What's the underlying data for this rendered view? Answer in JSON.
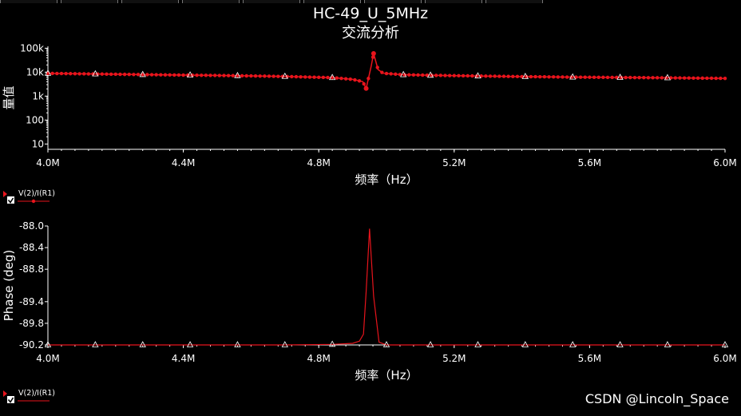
{
  "title": "HC-49_U_5MHz",
  "subtitle": "交流分析",
  "watermark": "CSDN @Lincoln_Space",
  "colors": {
    "trace": "#e8141c",
    "background": "#000000",
    "axis": "#ffffff"
  },
  "chart_data": [
    {
      "type": "line",
      "ylabel": "量值",
      "xlabel": "频率（Hz）",
      "xscale": "linear",
      "yscale": "log",
      "xlim": [
        4000000,
        6000000
      ],
      "ylim": [
        6,
        120000
      ],
      "x_ticks": [
        4000000,
        4400000,
        4800000,
        5200000,
        5600000,
        6000000
      ],
      "x_tick_labels": [
        "4.0M",
        "4.4M",
        "4.8M",
        "5.2M",
        "5.6M",
        "6.0M"
      ],
      "y_ticks": [
        10,
        100,
        1000,
        10000,
        100000
      ],
      "y_tick_labels": [
        "10",
        "100",
        "1k",
        "10k",
        "100k"
      ],
      "legend": {
        "label": "V(2)/I(R1)",
        "checked": true
      },
      "series": [
        {
          "name": "V(2)/I(R1)",
          "x": [
            4000000,
            4140000,
            4280000,
            4420000,
            4560000,
            4700000,
            4840000,
            4900000,
            4930000,
            4940000,
            4955000,
            4962000,
            4975000,
            4990000,
            5050000,
            5130000,
            5270000,
            5410000,
            5550000,
            5690000,
            5830000,
            6000000
          ],
          "y": [
            8900,
            8400,
            7900,
            7500,
            7100,
            6600,
            5900,
            5000,
            4000,
            2100,
            18000,
            60000,
            13000,
            9000,
            7800,
            7400,
            6900,
            6500,
            6200,
            6000,
            5800,
            5500
          ]
        }
      ]
    },
    {
      "type": "line",
      "ylabel": "Phase (deg)",
      "xlabel": "频率（Hz）",
      "xscale": "linear",
      "xlim": [
        4000000,
        6000000
      ],
      "ylim": [
        -90.2,
        -88.0
      ],
      "x_ticks": [
        4000000,
        4400000,
        4800000,
        5200000,
        5600000,
        6000000
      ],
      "x_tick_labels": [
        "4.0M",
        "4.4M",
        "4.8M",
        "5.2M",
        "5.6M",
        "6.0M"
      ],
      "y_ticks": [
        -90.2,
        -89.8,
        -89.4,
        -88.8,
        -88.4,
        -88.0
      ],
      "y_tick_labels": [
        "-90.2",
        "-89.8",
        "-89.4",
        "-88.8",
        "-88.4",
        "-88.0"
      ],
      "legend": {
        "label": "V(2)/I(R1)",
        "checked": true
      },
      "series": [
        {
          "name": "V(2)/I(R1)",
          "x": [
            4000000,
            4140000,
            4280000,
            4420000,
            4560000,
            4700000,
            4840000,
            4900000,
            4920000,
            4932000,
            4940000,
            4950000,
            4962000,
            4978000,
            5000000,
            5130000,
            5270000,
            5410000,
            5550000,
            5690000,
            5830000,
            6000000
          ],
          "y": [
            -90.2,
            -90.2,
            -90.2,
            -90.2,
            -90.2,
            -90.2,
            -90.19,
            -90.17,
            -90.13,
            -90.0,
            -89.2,
            -88.05,
            -89.3,
            -90.15,
            -90.2,
            -90.2,
            -90.2,
            -90.2,
            -90.2,
            -90.2,
            -90.2,
            -90.2
          ]
        }
      ]
    }
  ]
}
